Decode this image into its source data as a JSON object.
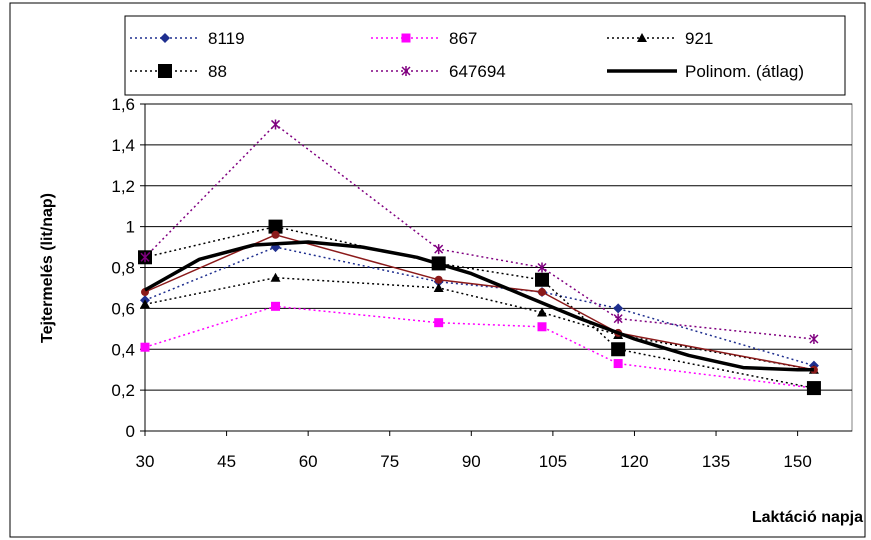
{
  "chart_data": {
    "type": "line",
    "title": "",
    "xlabel": "Laktáció napja",
    "ylabel": "Tejtermelés (lit/nap)",
    "xlim": [
      30,
      160
    ],
    "ylim": [
      0,
      1.6
    ],
    "x_ticks": [
      30,
      45,
      60,
      75,
      90,
      105,
      120,
      135,
      150
    ],
    "x_tick_labels": [
      "30",
      "45",
      "60",
      "75",
      "90",
      "105",
      "120",
      "135",
      "150"
    ],
    "y_ticks": [
      0,
      0.2,
      0.4,
      0.6,
      0.8,
      1.0,
      1.2,
      1.4,
      1.6
    ],
    "y_tick_labels": [
      "0",
      "0,2",
      "0,4",
      "0,6",
      "0,8",
      "1",
      "1,2",
      "1,4",
      "1,6"
    ],
    "grid": "horizontal",
    "legend_position": "top",
    "x": [
      30,
      54,
      84,
      103,
      117,
      153
    ],
    "series": [
      {
        "name": "8119",
        "values": [
          0.64,
          0.9,
          0.73,
          0.68,
          0.6,
          0.32
        ],
        "color": "#1f2f8f",
        "marker": "diamond",
        "line": "dotted"
      },
      {
        "name": "867",
        "values": [
          0.41,
          0.61,
          0.53,
          0.51,
          0.33,
          0.21
        ],
        "color": "#ff00ff",
        "marker": "square",
        "line": "dotted"
      },
      {
        "name": "921",
        "values": [
          0.62,
          0.75,
          0.7,
          0.58,
          0.47,
          0.3
        ],
        "color": "#000000",
        "marker": "triangle",
        "line": "dotted"
      },
      {
        "name": "88",
        "values": [
          0.85,
          1.0,
          0.82,
          0.74,
          0.4,
          0.21
        ],
        "color": "#000000",
        "marker": "square-large",
        "line": "dotted"
      },
      {
        "name": "647694",
        "values": [
          0.85,
          1.5,
          0.89,
          0.8,
          0.55,
          0.45
        ],
        "color": "#800080",
        "marker": "star",
        "line": "dotted"
      },
      {
        "name": "",
        "values": [
          0.68,
          0.96,
          0.74,
          0.68,
          0.48,
          0.3
        ],
        "color": "#8b1a1a",
        "marker": "circle",
        "line": "solid"
      },
      {
        "name": "Polinom. (átlag)",
        "x": [
          30,
          40,
          50,
          60,
          70,
          80,
          90,
          100,
          110,
          120,
          130,
          140,
          150,
          153
        ],
        "values": [
          0.69,
          0.84,
          0.91,
          0.925,
          0.9,
          0.85,
          0.77,
          0.66,
          0.55,
          0.45,
          0.37,
          0.31,
          0.3,
          0.3
        ],
        "color": "#000000",
        "marker": "none",
        "line": "thick"
      }
    ]
  }
}
